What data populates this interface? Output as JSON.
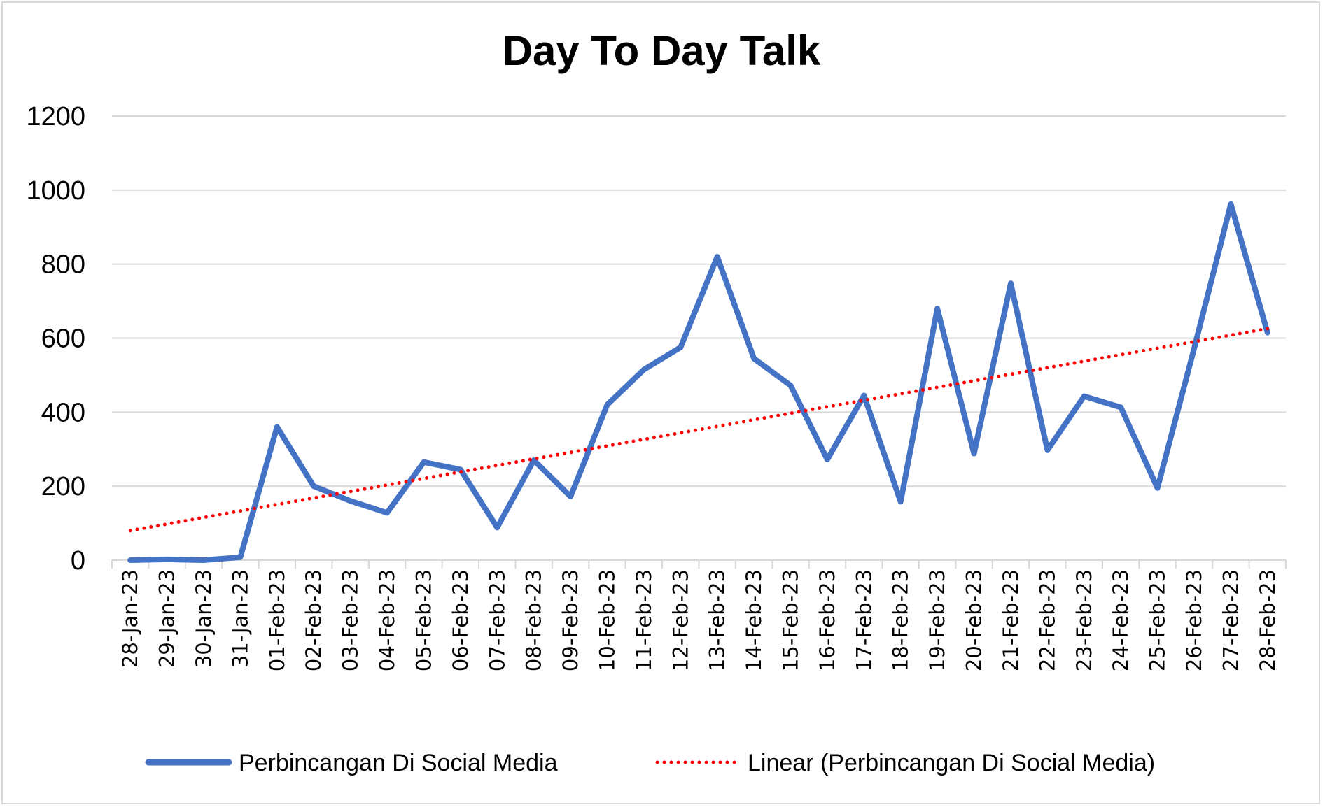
{
  "chart_data": {
    "type": "line",
    "title": "Day To Day Talk",
    "xlabel": "",
    "ylabel": "",
    "ylim": [
      0,
      1200
    ],
    "yticks": [
      "0",
      "200",
      "400",
      "600",
      "800",
      "1000",
      "1200"
    ],
    "grid": true,
    "legend_position": "bottom",
    "categories": [
      "28-Jan-23",
      "29-Jan-23",
      "30-Jan-23",
      "31-Jan-23",
      "01-Feb-23",
      "02-Feb-23",
      "03-Feb-23",
      "04-Feb-23",
      "05-Feb-23",
      "06-Feb-23",
      "07-Feb-23",
      "08-Feb-23",
      "09-Feb-23",
      "10-Feb-23",
      "11-Feb-23",
      "12-Feb-23",
      "13-Feb-23",
      "14-Feb-23",
      "15-Feb-23",
      "16-Feb-23",
      "17-Feb-23",
      "18-Feb-23",
      "19-Feb-23",
      "20-Feb-23",
      "21-Feb-23",
      "22-Feb-23",
      "23-Feb-23",
      "24-Feb-23",
      "25-Feb-23",
      "26-Feb-23",
      "27-Feb-23",
      "28-Feb-23"
    ],
    "series": [
      {
        "name": "Perbincangan Di Social Media",
        "color": "#4472c4",
        "style": "solid",
        "values": [
          0,
          2,
          0,
          8,
          360,
          200,
          160,
          128,
          265,
          245,
          88,
          270,
          172,
          420,
          515,
          575,
          820,
          545,
          472,
          272,
          445,
          158,
          680,
          288,
          748,
          297,
          443,
          413,
          195,
          572,
          962,
          615
        ]
      },
      {
        "name": "Linear (Perbincangan Di Social Media)",
        "color": "#ff0000",
        "style": "dotted",
        "values": [
          80,
          97.6,
          115.2,
          132.8,
          150.4,
          168,
          185.6,
          203.2,
          220.8,
          238.4,
          256,
          273.6,
          291.2,
          308.8,
          326.4,
          344,
          361.6,
          379.2,
          396.8,
          414.4,
          432,
          449.6,
          467.2,
          484.8,
          502.4,
          520,
          537.6,
          555.2,
          572.8,
          590.4,
          608,
          625.6
        ]
      }
    ]
  }
}
